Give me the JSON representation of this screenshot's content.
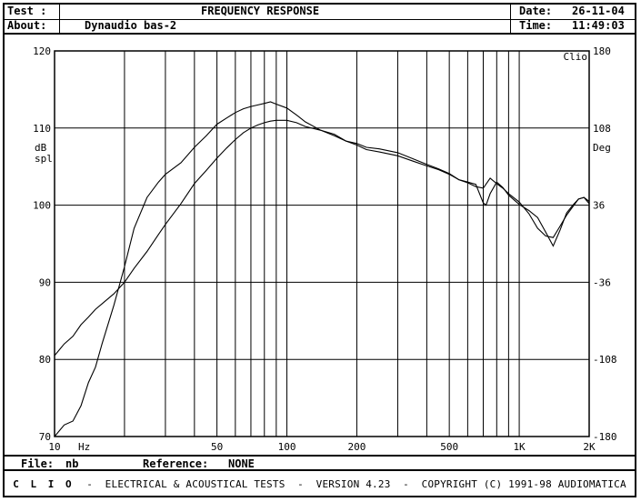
{
  "header": {
    "test_label": "Test :",
    "title": "FREQUENCY RESPONSE",
    "date_label": "Date:",
    "date_value": "26-11-04",
    "about_label": "About:",
    "about_value": "Dynaudio bas-2",
    "time_label": "Time:",
    "time_value": "11:49:03"
  },
  "footer": {
    "file_label": "File:",
    "file_value": "nb",
    "reference_label": "Reference:",
    "reference_value": "NONE"
  },
  "bottom_bar": {
    "brand": "C L I O",
    "text": "  -  ELECTRICAL & ACOUSTICAL TESTS  -  VERSION 4.23  -  COPYRIGHT (C) 1991-98 AUDIOMATICA"
  },
  "chart_data": {
    "type": "line",
    "xscale": "log",
    "xlim": [
      10,
      2000
    ],
    "ylim": [
      70,
      120
    ],
    "y2lim": [
      -180,
      180
    ],
    "grid": true,
    "ylabel": "dB\nspl",
    "y2label": "Deg",
    "xunit_label": "Hz",
    "corner_label": "Clio",
    "x_tick_labels": [
      {
        "value": 10,
        "label": "10"
      },
      {
        "value": 50,
        "label": "50"
      },
      {
        "value": 100,
        "label": "100"
      },
      {
        "value": 200,
        "label": "200"
      },
      {
        "value": 500,
        "label": "500"
      },
      {
        "value": 1000,
        "label": "1K"
      },
      {
        "value": 2000,
        "label": "2K"
      }
    ],
    "y_tick_labels": [
      "70",
      "80",
      "90",
      "100",
      "110",
      "120"
    ],
    "y2_tick_labels": [
      "-180",
      "-108",
      "-36",
      "36",
      "108",
      "180"
    ],
    "series": [
      {
        "x": [
          10,
          11,
          12,
          13,
          14,
          15,
          16,
          18,
          20,
          22,
          25,
          28,
          30,
          35,
          40,
          45,
          50,
          55,
          60,
          65,
          70,
          75,
          80,
          85,
          90,
          100,
          110,
          120,
          140,
          160,
          180,
          200,
          220,
          250,
          300,
          350,
          400,
          450,
          500,
          550,
          600,
          650,
          700,
          750,
          800,
          850,
          900,
          1000,
          1100,
          1200,
          1300,
          1400,
          1500,
          1600,
          1700,
          1800,
          1900,
          2000
        ],
        "y": [
          70,
          71.5,
          72,
          74,
          77,
          79,
          82,
          87,
          92,
          97,
          101,
          103,
          104,
          105.5,
          107.5,
          109,
          110.5,
          111.3,
          112,
          112.5,
          112.8,
          113,
          113.2,
          113.4,
          113.1,
          112.6,
          111.7,
          110.8,
          109.7,
          109.2,
          108.3,
          108.0,
          107.5,
          107.3,
          106.8,
          106.0,
          105.3,
          104.7,
          104.1,
          103.3,
          102.9,
          102.4,
          102.2,
          103.5,
          102.8,
          102.2,
          101.5,
          100.4,
          98.9,
          97.0,
          96.0,
          95.8,
          97.3,
          98.7,
          99.8,
          100.8,
          101.0,
          100.5
        ]
      },
      {
        "x": [
          10,
          11,
          12,
          13,
          14,
          15,
          16,
          18,
          20,
          22,
          25,
          28,
          30,
          35,
          40,
          45,
          50,
          55,
          60,
          65,
          70,
          75,
          80,
          85,
          90,
          100,
          110,
          120,
          140,
          160,
          180,
          200,
          220,
          250,
          300,
          350,
          400,
          450,
          500,
          550,
          600,
          650,
          700,
          720,
          750,
          800,
          850,
          900,
          1000,
          1100,
          1200,
          1300,
          1400,
          1500,
          1600,
          1700,
          1800,
          1900,
          2000
        ],
        "y": [
          80.5,
          82,
          83,
          84.5,
          85.5,
          86.5,
          87.2,
          88.5,
          90,
          91.8,
          94,
          96.2,
          97.5,
          100.2,
          102.8,
          104.5,
          106.1,
          107.4,
          108.5,
          109.4,
          110.0,
          110.4,
          110.7,
          110.9,
          111.0,
          111.0,
          110.7,
          110.2,
          109.7,
          109.0,
          108.3,
          107.8,
          107.2,
          106.9,
          106.4,
          105.7,
          105.1,
          104.6,
          104.0,
          103.3,
          103.0,
          102.7,
          100.3,
          100.0,
          101.5,
          103.0,
          102.3,
          101.3,
          100.1,
          99.3,
          98.4,
          96.5,
          94.7,
          96.8,
          99.0,
          100.0,
          100.8,
          101.0,
          100.2
        ]
      }
    ]
  }
}
